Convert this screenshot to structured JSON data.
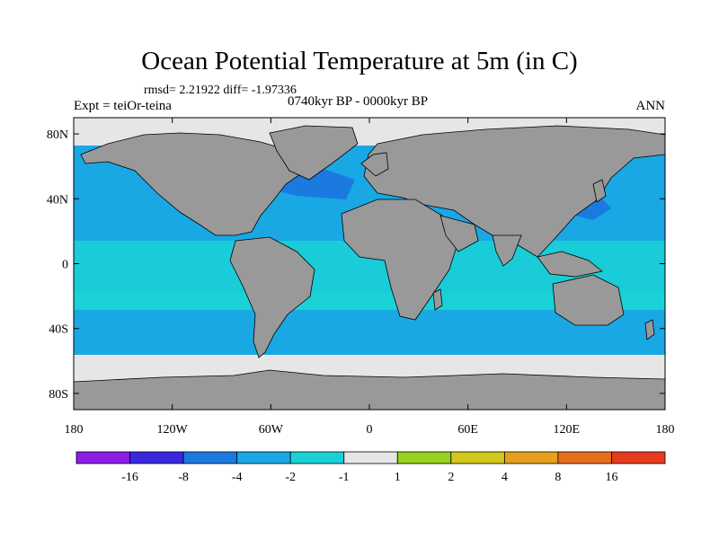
{
  "title": "Ocean Potential Temperature at 5m (in C)",
  "stats": "rmsd= 2.21922 diff= -1.97336",
  "expt": "Expt = teiOr-teina",
  "period": "0740kyr BP - 0000kyr BP",
  "season": "ANN",
  "lat_axis": {
    "ticks": [
      80,
      40,
      0,
      -40,
      -80
    ],
    "labels": [
      "80N",
      "40N",
      "0",
      "40S",
      "80S"
    ]
  },
  "lon_axis": {
    "ticks": [
      -180,
      -120,
      -60,
      0,
      60,
      120,
      180
    ],
    "labels": [
      "180",
      "120W",
      "60W",
      "0",
      "60E",
      "120E",
      "180"
    ]
  },
  "colorbar": {
    "labels": [
      "-16",
      "-8",
      "-4",
      "-2",
      "-1",
      "1",
      "2",
      "4",
      "8",
      "16"
    ],
    "colors": [
      "#8a1ee6",
      "#3a28e0",
      "#1a7ae0",
      "#1aa8e6",
      "#1ad2d6",
      "#e6e6e6",
      "#96d21e",
      "#d2c81e",
      "#e6a01e",
      "#e66e1e",
      "#e63c1e"
    ]
  },
  "colors": {
    "land": "#999999",
    "ocean": "#19a8e4",
    "deep": "#1a7ae0",
    "light": "#1ad2d6",
    "ice": "#e6e6e6"
  }
}
